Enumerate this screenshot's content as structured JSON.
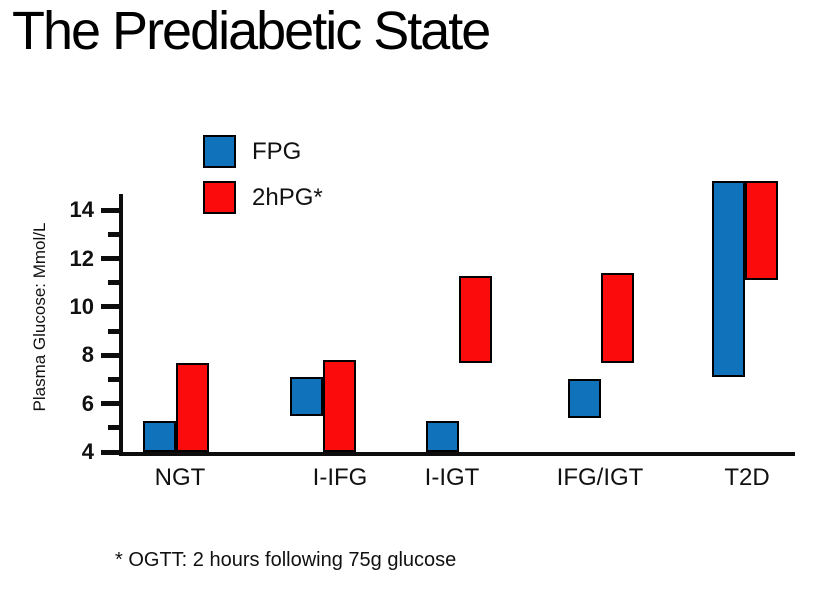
{
  "title": "The Prediabetic State",
  "legend": {
    "items": [
      {
        "label": "FPG",
        "color": "#1172BC"
      },
      {
        "label": "2hPG*",
        "color": "#FB0B0B"
      }
    ]
  },
  "footnote": "* OGTT: 2 hours following 75g glucose",
  "colors": {
    "axis": "#0d0d0d",
    "bar_border": "#000000",
    "fpg_blue": "#1172BC",
    "2hpg_red": "#FB0B0B",
    "background": "#ffffff",
    "text": "#111111"
  },
  "chart_data": {
    "type": "bar",
    "subtype": "floating-range-bars",
    "title": "The Prediabetic State",
    "categories": [
      "NGT",
      "I-IFG",
      "I-IGT",
      "IFG/IGT",
      "T2D"
    ],
    "series": [
      {
        "name": "FPG",
        "color": "#1172BC",
        "ranges": [
          [
            4,
            5.3
          ],
          [
            5.5,
            7.1
          ],
          [
            4,
            5.3
          ],
          [
            5.4,
            7.0
          ],
          [
            7.1,
            15.2
          ]
        ]
      },
      {
        "name": "2hPG*",
        "color": "#FB0B0B",
        "ranges": [
          [
            4,
            7.7
          ],
          [
            4,
            7.8
          ],
          [
            7.7,
            11.3
          ],
          [
            7.7,
            11.4
          ],
          [
            11.1,
            15.2
          ]
        ]
      }
    ],
    "xlabel": "",
    "ylabel": "Plasma Glucose: Mmol/L",
    "ylim": [
      4,
      15.3
    ],
    "yticks_major": [
      4,
      6,
      8,
      10,
      12,
      14
    ],
    "yticks_minor": [
      5,
      7,
      9,
      11,
      13
    ],
    "grid": false,
    "legend_position": "top-left-inside"
  }
}
